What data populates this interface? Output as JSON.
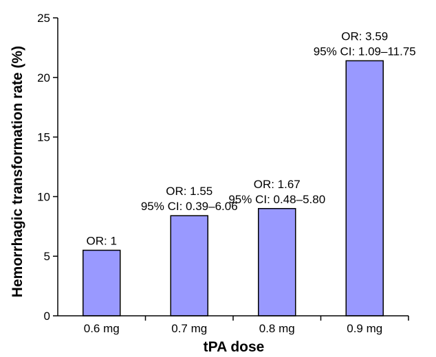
{
  "chart_data": {
    "type": "bar",
    "categories": [
      "0.6 mg",
      "0.7 mg",
      "0.8 mg",
      "0.9 mg"
    ],
    "values": [
      5.5,
      8.4,
      9.0,
      21.4
    ],
    "annotations": [
      [
        "OR: 1"
      ],
      [
        "OR: 1.55",
        "95% CI: 0.39–6.06"
      ],
      [
        "OR: 1.67",
        "95% CI: 0.48–5.80"
      ],
      [
        "OR: 3.59",
        "95% CI: 1.09–11.75"
      ]
    ],
    "xlabel": "tPA dose",
    "ylabel": "Hemorrhagic transformation rate (%)",
    "ylim": [
      0,
      25
    ],
    "yticks": [
      0,
      5,
      10,
      15,
      20,
      25
    ],
    "bar_color": "#9999ff",
    "bar_edge_color": "#000000",
    "grid": false
  }
}
